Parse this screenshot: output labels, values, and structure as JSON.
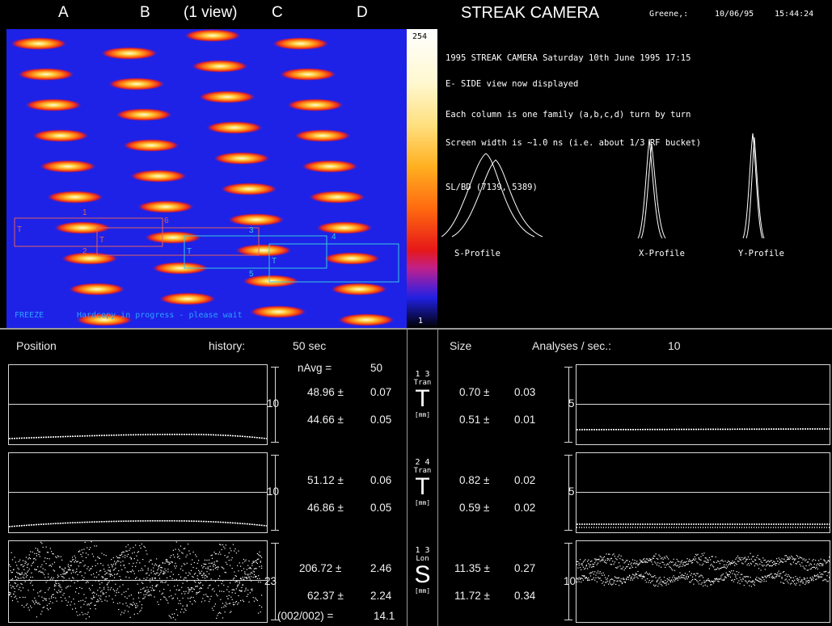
{
  "header": {
    "col_a": "A",
    "col_b": "B",
    "view": "(1 view)",
    "col_c": "C",
    "col_d": "D",
    "title": "STREAK CAMERA",
    "user": "Greene,:",
    "date": "10/06/95",
    "time": "15:44:24"
  },
  "image_panel": {
    "status_freeze": "FREEZE",
    "status_msg": "Hardcopy in progress - please wait",
    "colorbar_max": "254",
    "colorbar_min": "1",
    "roi_labels": [
      "1",
      "2",
      "3",
      "4",
      "5",
      "6"
    ],
    "roi_t": "T"
  },
  "info_panel": {
    "line1": "1995 STREAK CAMERA    Saturday 10th June 1995 17:15",
    "line2": "E- SIDE view now displayed",
    "line3": "Each column is one family (a,b,c,d) turn by turn",
    "line4": "Screen width is ~1.0 ns  (i.e. about 1/3 RF bucket)",
    "line5": "SL/BD (7139, 5389)",
    "s_profile": "S-Profile",
    "x_profile": "X-Profile",
    "y_profile": "Y-Profile"
  },
  "position_panel": {
    "title": "Position",
    "history_label": "history:",
    "history_value": "50 sec",
    "navg_label": "nAvg =",
    "navg_value": "50",
    "row1": {
      "a": "48.96 ±",
      "a_err": "0.07",
      "b": "44.66 ±",
      "b_err": "0.05",
      "scale": "10"
    },
    "row2": {
      "a": "51.12 ±",
      "a_err": "0.06",
      "b": "46.86 ±",
      "b_err": "0.05",
      "scale": "10"
    },
    "row3": {
      "a": "206.72 ±",
      "a_err": "2.46",
      "b": "62.37 ±",
      "b_err": "2.24",
      "scale": "23"
    },
    "ratio_label": "(002/002) =",
    "ratio_value": "14.1"
  },
  "center_labels": [
    {
      "pair": "1 3",
      "kind": "Tran",
      "big": "T",
      "unit": "[mm]"
    },
    {
      "pair": "2 4",
      "kind": "Tran",
      "big": "T",
      "unit": "[mm]"
    },
    {
      "pair": "1 3",
      "kind": "Lon",
      "big": "S",
      "unit": "[mm]"
    }
  ],
  "size_panel": {
    "title": "Size",
    "analyses_label": "Analyses / sec.:",
    "analyses_value": "10",
    "row1": {
      "a": "0.70 ±",
      "a_err": "0.03",
      "b": "0.51 ±",
      "b_err": "0.01",
      "scale": "5"
    },
    "row2": {
      "a": "0.82 ±",
      "a_err": "0.02",
      "b": "0.59 ±",
      "b_err": "0.02",
      "scale": "5"
    },
    "row3": {
      "a": "11.35 ±",
      "a_err": "0.27",
      "b": "11.72 ±",
      "b_err": "0.34",
      "scale": "10"
    }
  }
}
